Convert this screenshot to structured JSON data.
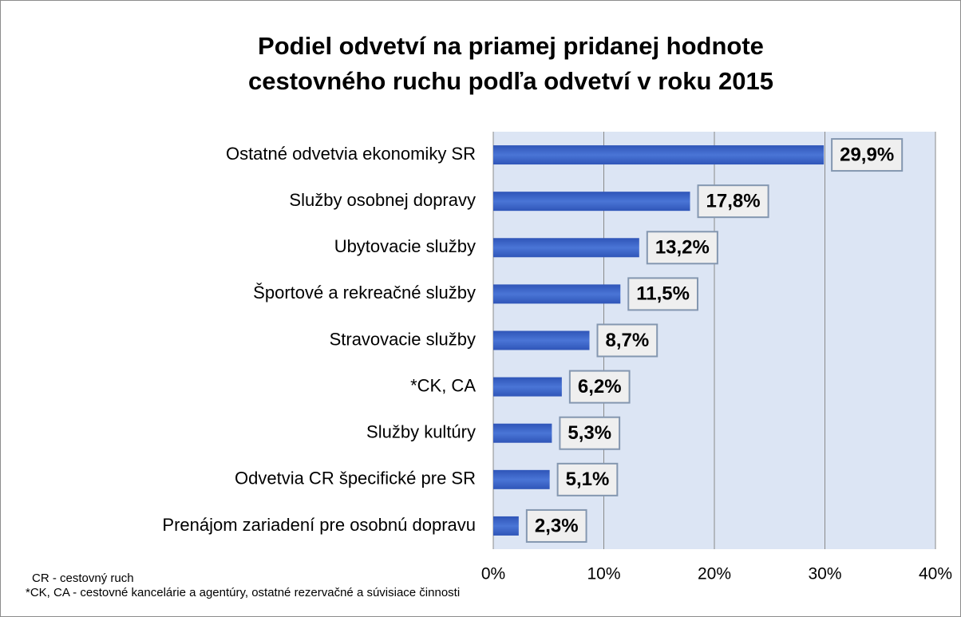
{
  "chart_data": {
    "type": "barh",
    "title": [
      "Podiel odvetví na priamej pridanej hodnote",
      "cestovného ruchu podľa odvetví v roku 2015"
    ],
    "categories": [
      "Ostatné odvetvia ekonomiky SR",
      "Služby osobnej dopravy",
      "Ubytovacie služby",
      "Športové a rekreačné služby",
      "Stravovacie služby",
      "*CK, CA",
      "Služby kultúry",
      "Odvetvia CR špecifické pre SR",
      "Prenájom zariadení pre osobnú dopravu"
    ],
    "values": [
      29.9,
      17.8,
      13.2,
      11.5,
      8.7,
      6.2,
      5.3,
      5.1,
      2.3
    ],
    "value_labels": [
      "29,9%",
      "17,8%",
      "13,2%",
      "11,5%",
      "8,7%",
      "6,2%",
      "5,3%",
      "5,1%",
      "2,3%"
    ],
    "color": "#3f67c8",
    "xlim": [
      0,
      40
    ],
    "xticks": [
      {
        "value": 0,
        "label": "0%"
      },
      {
        "value": 10,
        "label": "10%"
      },
      {
        "value": 20,
        "label": "20%"
      },
      {
        "value": 30,
        "label": "30%"
      },
      {
        "value": 40,
        "label": "40%"
      }
    ],
    "grid": true,
    "notes": [
      "CR - cestovný ruch",
      "*CK, CA - cestovné kancelárie a agentúry, ostatné rezervačné a súvisiace činnosti"
    ]
  }
}
